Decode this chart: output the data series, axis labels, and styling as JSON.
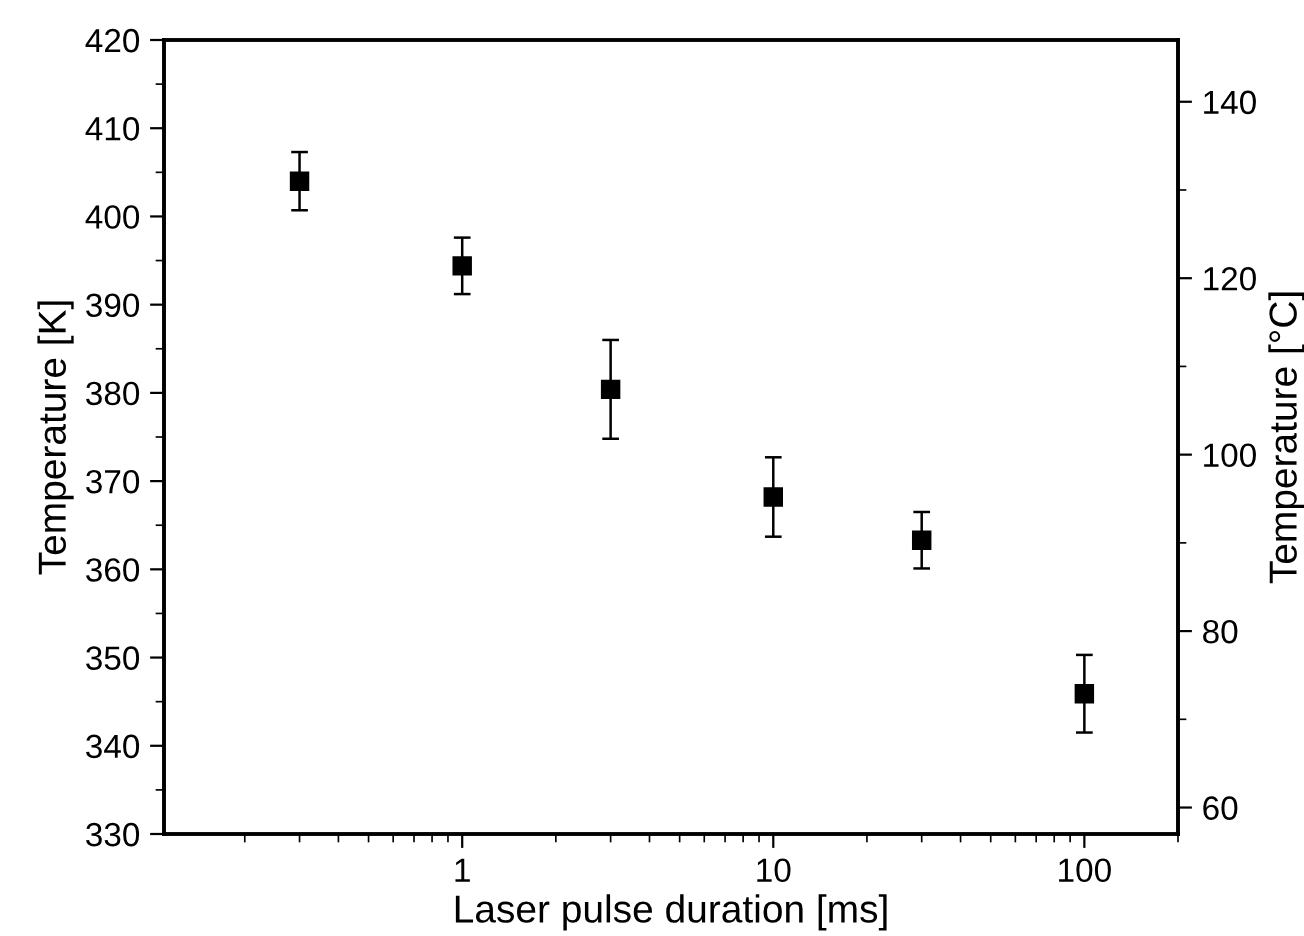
{
  "chart_data": {
    "type": "scatter",
    "xlabel": "Laser pulse duration [ms]",
    "ylabel": "Temperature [K]",
    "y2label": "Temperature [°C]",
    "log": "x",
    "xlim": [
      0.11,
      200
    ],
    "xticks": [
      1,
      10,
      100
    ],
    "ylim": [
      330,
      420
    ],
    "yticks": [
      330,
      340,
      350,
      360,
      370,
      380,
      390,
      400,
      410,
      420
    ],
    "y2lim": [
      57,
      147
    ],
    "y2ticks": [
      60,
      80,
      100,
      120,
      140
    ],
    "marker": "square",
    "grid": false,
    "legend": false,
    "series": [
      {
        "color": "#000000",
        "x": [
          0.3,
          1,
          3,
          10,
          30,
          100
        ],
        "values": [
          404.0,
          394.4,
          380.4,
          368.2,
          363.3,
          345.9
        ],
        "errors": [
          3.3,
          3.2,
          5.6,
          4.5,
          3.2,
          4.4
        ]
      }
    ]
  }
}
